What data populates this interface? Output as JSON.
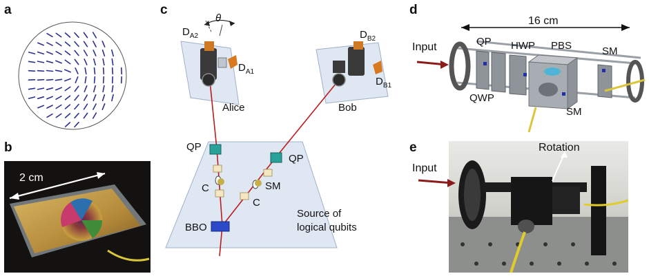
{
  "panels": {
    "a": "a",
    "b": "b",
    "c": "c",
    "d": "d",
    "e": "e"
  },
  "panel_b": {
    "scale_label": "2 cm"
  },
  "panel_c": {
    "theta": "θ",
    "da2_main": "D",
    "da2_sub": "A2",
    "da1_main": "D",
    "da1_sub": "A1",
    "db2_main": "D",
    "db2_sub": "B2",
    "db1_main": "D",
    "db1_sub": "B1",
    "alice": "Alice",
    "bob": "Bob",
    "qp_left": "QP",
    "qp_right": "QP",
    "c_left": "C",
    "c_right": "C",
    "sm": "SM",
    "bbo": "BBO",
    "source_line1": "Source of",
    "source_line2": "logical qubits"
  },
  "panel_d": {
    "length": "16 cm",
    "input": "Input",
    "qp": "QP",
    "hwp": "HWP",
    "pbs": "PBS",
    "sm_top": "SM",
    "qwp": "QWP",
    "sm_bottom": "SM"
  },
  "panel_e": {
    "input": "Input",
    "rotation": "Rotation"
  },
  "colors": {
    "beam": "#b81d1d",
    "plate": "#dfe7f3",
    "qp_teal": "#2aa198",
    "bbo_blue": "#2b49c9",
    "arrow_red": "#8b1a1a",
    "field_line": "#2b2f8f"
  }
}
